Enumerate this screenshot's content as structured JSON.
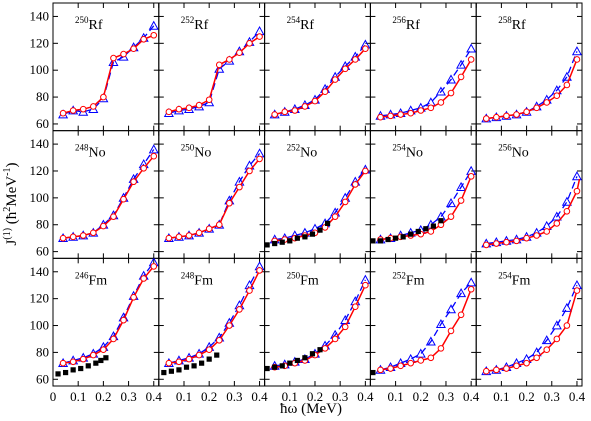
{
  "chart_data": {
    "type": "line",
    "grid": false,
    "layout": {
      "rows": 3,
      "cols": 5
    },
    "xlabel": "ħω (MeV)",
    "ylabel_parts": {
      "main": "J",
      "sup1": "(1)",
      "paren_open": " (ħ",
      "sup2": "2",
      "unit": "MeV",
      "sup3": "-1",
      "paren_close": ")"
    },
    "xlim": [
      0,
      0.42
    ],
    "ylim_rows": [
      [
        55,
        150
      ],
      [
        55,
        150
      ],
      [
        55,
        150
      ]
    ],
    "xticks": [
      0,
      0.1,
      0.2,
      0.3,
      0.4
    ],
    "xtick_labels_first_col": [
      "0",
      "0.1",
      "0.2",
      "0.3",
      "0.4"
    ],
    "xtick_labels_other_cols": [
      "0.1",
      "0.2",
      "0.3",
      "0.4"
    ],
    "yticks": [
      60,
      80,
      100,
      120,
      140
    ],
    "ytick_labels": [
      "60",
      "80",
      "100",
      "120",
      "140"
    ],
    "series_styles": {
      "red": {
        "color": "#ff0000",
        "marker": "circle",
        "dash": "none"
      },
      "blue": {
        "color": "#0000ff",
        "marker": "triangle",
        "dash": "7,4"
      },
      "exp": {
        "color": "#000000",
        "marker": "square"
      }
    },
    "x_calc": [
      0.04,
      0.08,
      0.12,
      0.16,
      0.2,
      0.24,
      0.28,
      0.32,
      0.36,
      0.4
    ],
    "panels": [
      {
        "mass": "250",
        "el": "Rf",
        "red": [
          68,
          70,
          71,
          73,
          80,
          109,
          112,
          116,
          123,
          126
        ],
        "blue": [
          67,
          70,
          69,
          71,
          79,
          106,
          110,
          117,
          124,
          133
        ],
        "exp": []
      },
      {
        "mass": "252",
        "el": "Rf",
        "red": [
          69,
          71,
          72,
          74,
          78,
          104,
          108,
          113,
          120,
          125
        ],
        "blue": [
          68,
          70,
          71,
          73,
          76,
          101,
          107,
          114,
          121,
          129
        ],
        "exp": []
      },
      {
        "mass": "254",
        "el": "Rf",
        "red": [
          67,
          69,
          70,
          73,
          77,
          84,
          93,
          101,
          108,
          116
        ],
        "blue": [
          67,
          69,
          71,
          74,
          78,
          86,
          95,
          103,
          110,
          119
        ],
        "exp": []
      },
      {
        "mass": "256",
        "el": "Rf",
        "red": [
          65,
          66,
          67,
          68,
          70,
          72,
          76,
          83,
          95,
          108
        ],
        "blue": [
          66,
          67,
          68,
          70,
          72,
          76,
          84,
          93,
          104,
          116
        ],
        "exp": []
      },
      {
        "mass": "258",
        "el": "Rf",
        "red": [
          64,
          65,
          66,
          67,
          69,
          72,
          76,
          81,
          89,
          108
        ],
        "blue": [
          64,
          65,
          66,
          67,
          69,
          73,
          78,
          85,
          95,
          114
        ],
        "exp": []
      },
      {
        "mass": "248",
        "el": "No",
        "red": [
          70,
          71,
          72,
          74,
          79,
          86,
          99,
          112,
          122,
          131
        ],
        "blue": [
          70,
          71,
          72,
          74,
          80,
          87,
          100,
          114,
          125,
          136
        ],
        "exp": []
      },
      {
        "mass": "250",
        "el": "No",
        "red": [
          70,
          71,
          72,
          74,
          77,
          80,
          96,
          108,
          120,
          129
        ],
        "blue": [
          70,
          71,
          72,
          74,
          77,
          80,
          98,
          112,
          124,
          133
        ],
        "exp": []
      },
      {
        "mass": "252",
        "el": "No",
        "red": [
          68,
          69,
          70,
          72,
          74,
          78,
          86,
          97,
          110,
          120
        ],
        "blue": [
          69,
          70,
          72,
          74,
          77,
          81,
          89,
          100,
          112,
          121
        ],
        "exp_x": [
          0.01,
          0.04,
          0.07,
          0.1,
          0.13,
          0.16,
          0.19,
          0.22,
          0.25
        ],
        "exp": [
          65,
          66,
          67,
          68,
          70,
          71,
          73,
          76,
          81
        ]
      },
      {
        "mass": "254",
        "el": "No",
        "red": [
          69,
          70,
          71,
          72,
          73,
          75,
          80,
          86,
          98,
          116
        ],
        "blue": [
          69,
          70,
          72,
          74,
          76,
          80,
          86,
          96,
          108,
          120
        ],
        "exp_x": [
          0.01,
          0.04,
          0.07,
          0.1,
          0.13,
          0.16,
          0.19,
          0.22,
          0.25,
          0.28
        ],
        "exp": [
          68,
          68,
          69,
          70,
          71,
          73,
          75,
          77,
          79,
          83
        ]
      },
      {
        "mass": "256",
        "el": "No",
        "red": [
          65,
          66,
          67,
          68,
          70,
          72,
          75,
          81,
          90,
          105,
          114
        ],
        "red_x": [
          0.04,
          0.08,
          0.12,
          0.16,
          0.2,
          0.24,
          0.28,
          0.32,
          0.36,
          0.4,
          0.41
        ],
        "blue": [
          66,
          67,
          68,
          69,
          71,
          74,
          79,
          86,
          97,
          116
        ],
        "exp": []
      },
      {
        "mass": "246",
        "el": "Fm",
        "red": [
          72,
          73,
          75,
          78,
          82,
          90,
          104,
          121,
          135,
          144
        ],
        "blue": [
          72,
          74,
          76,
          79,
          84,
          92,
          106,
          122,
          137,
          147
        ],
        "exp_x": [
          0.02,
          0.05,
          0.08,
          0.11,
          0.14,
          0.17,
          0.19,
          0.21
        ],
        "exp": [
          64,
          65,
          67,
          68,
          70,
          72,
          74,
          76
        ]
      },
      {
        "mass": "248",
        "el": "Fm",
        "red": [
          72,
          73,
          75,
          78,
          82,
          89,
          100,
          112,
          126,
          141
        ],
        "blue": [
          72,
          74,
          76,
          79,
          84,
          91,
          102,
          115,
          130,
          144
        ],
        "exp_x": [
          0.02,
          0.05,
          0.08,
          0.11,
          0.14,
          0.17,
          0.2,
          0.23
        ],
        "exp": [
          65,
          66,
          67,
          69,
          70,
          72,
          75,
          78
        ]
      },
      {
        "mass": "250",
        "el": "Fm",
        "red": [
          69,
          70,
          72,
          74,
          78,
          83,
          90,
          99,
          114,
          130
        ],
        "blue": [
          70,
          71,
          73,
          75,
          79,
          85,
          93,
          104,
          118,
          134
        ],
        "exp_x": [
          0.01,
          0.04,
          0.07,
          0.1,
          0.13,
          0.16,
          0.19,
          0.22
        ],
        "exp": [
          68,
          69,
          70,
          72,
          74,
          76,
          79,
          82
        ]
      },
      {
        "mass": "252",
        "el": "Fm",
        "red": [
          67,
          68,
          70,
          72,
          74,
          76,
          83,
          96,
          108,
          127
        ],
        "blue": [
          67,
          69,
          72,
          75,
          79,
          88,
          101,
          112,
          124,
          132
        ],
        "exp_x": [
          0.01
        ],
        "exp": [
          65
        ]
      },
      {
        "mass": "254",
        "el": "Fm",
        "red": [
          66,
          67,
          68,
          70,
          72,
          76,
          82,
          90,
          100,
          126
        ],
        "blue": [
          66,
          67,
          69,
          72,
          75,
          80,
          89,
          100,
          113,
          130
        ],
        "exp": []
      }
    ]
  }
}
